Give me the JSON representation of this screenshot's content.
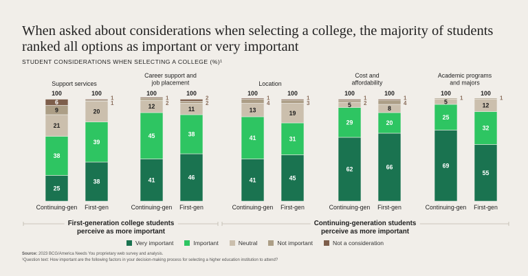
{
  "title": "When asked about considerations when selecting a college, the majority of students ranked all options as important or very important",
  "subtitle": "STUDENT CONSIDERATIONS WHEN SELECTING A COLLEGE (%)¹",
  "colors": {
    "very_important": "#1a7350",
    "important": "#2ec562",
    "neutral": "#cbbfad",
    "not_important": "#ac9e86",
    "not_a_consideration": "#7d5e4b"
  },
  "legend": [
    {
      "key": "very_important",
      "label": "Very important"
    },
    {
      "key": "important",
      "label": "Important"
    },
    {
      "key": "neutral",
      "label": "Neutral"
    },
    {
      "key": "not_important",
      "label": "Not important"
    },
    {
      "key": "not_a_consideration",
      "label": "Not a consideration"
    }
  ],
  "group_notes": {
    "left": {
      "line1": "First-generation college students",
      "line2": "perceive as more important"
    },
    "right": {
      "line1": "Continuing-generation students",
      "line2": "perceive as more important"
    }
  },
  "source": {
    "label": "Source:",
    "text": "2023 BCG/America Needs You proprietary web survey and analysis.",
    "footnote": "¹Question text: How important are the following factors in your decision-making process for selecting a higher education institution to attend?"
  },
  "chart_data": {
    "type": "bar",
    "stacked": true,
    "series_order": [
      "Very important",
      "Important",
      "Neutral",
      "Not important",
      "Not a consideration"
    ],
    "groups": [
      {
        "name": "Support services",
        "bars": [
          {
            "label": "Continuing-gen",
            "total": 100,
            "values": [
              25,
              38,
              21,
              9,
              6
            ]
          },
          {
            "label": "First-gen",
            "total": 100,
            "values": [
              38,
              39,
              20,
              1,
              1
            ]
          }
        ]
      },
      {
        "name": "Career support and job placement",
        "bars": [
          {
            "label": "Continuing-gen",
            "total": 100,
            "values": [
              41,
              45,
              12,
              2,
              1
            ]
          },
          {
            "label": "First-gen",
            "total": 100,
            "values": [
              46,
              38,
              11,
              2,
              2
            ]
          }
        ]
      },
      {
        "name": "Location",
        "bars": [
          {
            "label": "Continuing-gen",
            "total": 100,
            "values": [
              41,
              41,
              13,
              4,
              1
            ]
          },
          {
            "label": "First-gen",
            "total": 100,
            "values": [
              45,
              31,
              19,
              3,
              1
            ]
          }
        ]
      },
      {
        "name": "Cost and affordability",
        "bars": [
          {
            "label": "Continuing-gen",
            "total": 100,
            "values": [
              62,
              29,
              5,
              2,
              1
            ]
          },
          {
            "label": "First-gen",
            "total": 100,
            "values": [
              66,
              20,
              8,
              4,
              1
            ]
          }
        ]
      },
      {
        "name": "Academic programs and majors",
        "bars": [
          {
            "label": "Continuing-gen",
            "total": 100,
            "values": [
              69,
              25,
              5,
              1,
              0
            ]
          },
          {
            "label": "First-gen",
            "total": 100,
            "values": [
              55,
              32,
              12,
              1,
              0
            ]
          }
        ]
      }
    ]
  }
}
